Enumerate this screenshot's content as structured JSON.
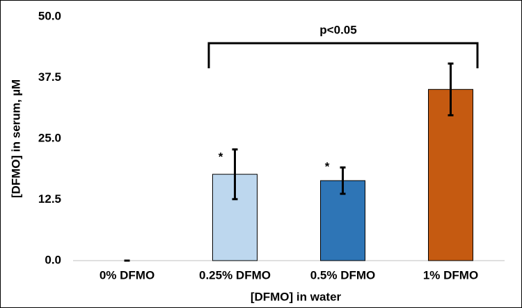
{
  "chart_data": {
    "type": "bar",
    "x_label": "[DFMO] in water",
    "y_label": "[DFMO] in serum, µM",
    "categories": [
      "0% DFMO",
      "0.25% DFMO",
      "0.5% DFMO",
      "1% DFMO"
    ],
    "values": [
      0,
      17.7,
      16.4,
      35.1
    ],
    "errors": [
      0,
      5.1,
      2.7,
      5.3
    ],
    "colors": [
      "#bdd7ee",
      "#bdd7ee",
      "#2e75b6",
      "#c55a11"
    ],
    "ylim": [
      0,
      50
    ],
    "yticks": [
      {
        "value": 0,
        "label": "0.0"
      },
      {
        "value": 12.5,
        "label": "12.5"
      },
      {
        "value": 25,
        "label": "25.0"
      },
      {
        "value": 37.5,
        "label": "37.5"
      },
      {
        "value": 50,
        "label": "50.0"
      }
    ],
    "annotations": [
      "p<0.05",
      "*",
      "*"
    ]
  }
}
